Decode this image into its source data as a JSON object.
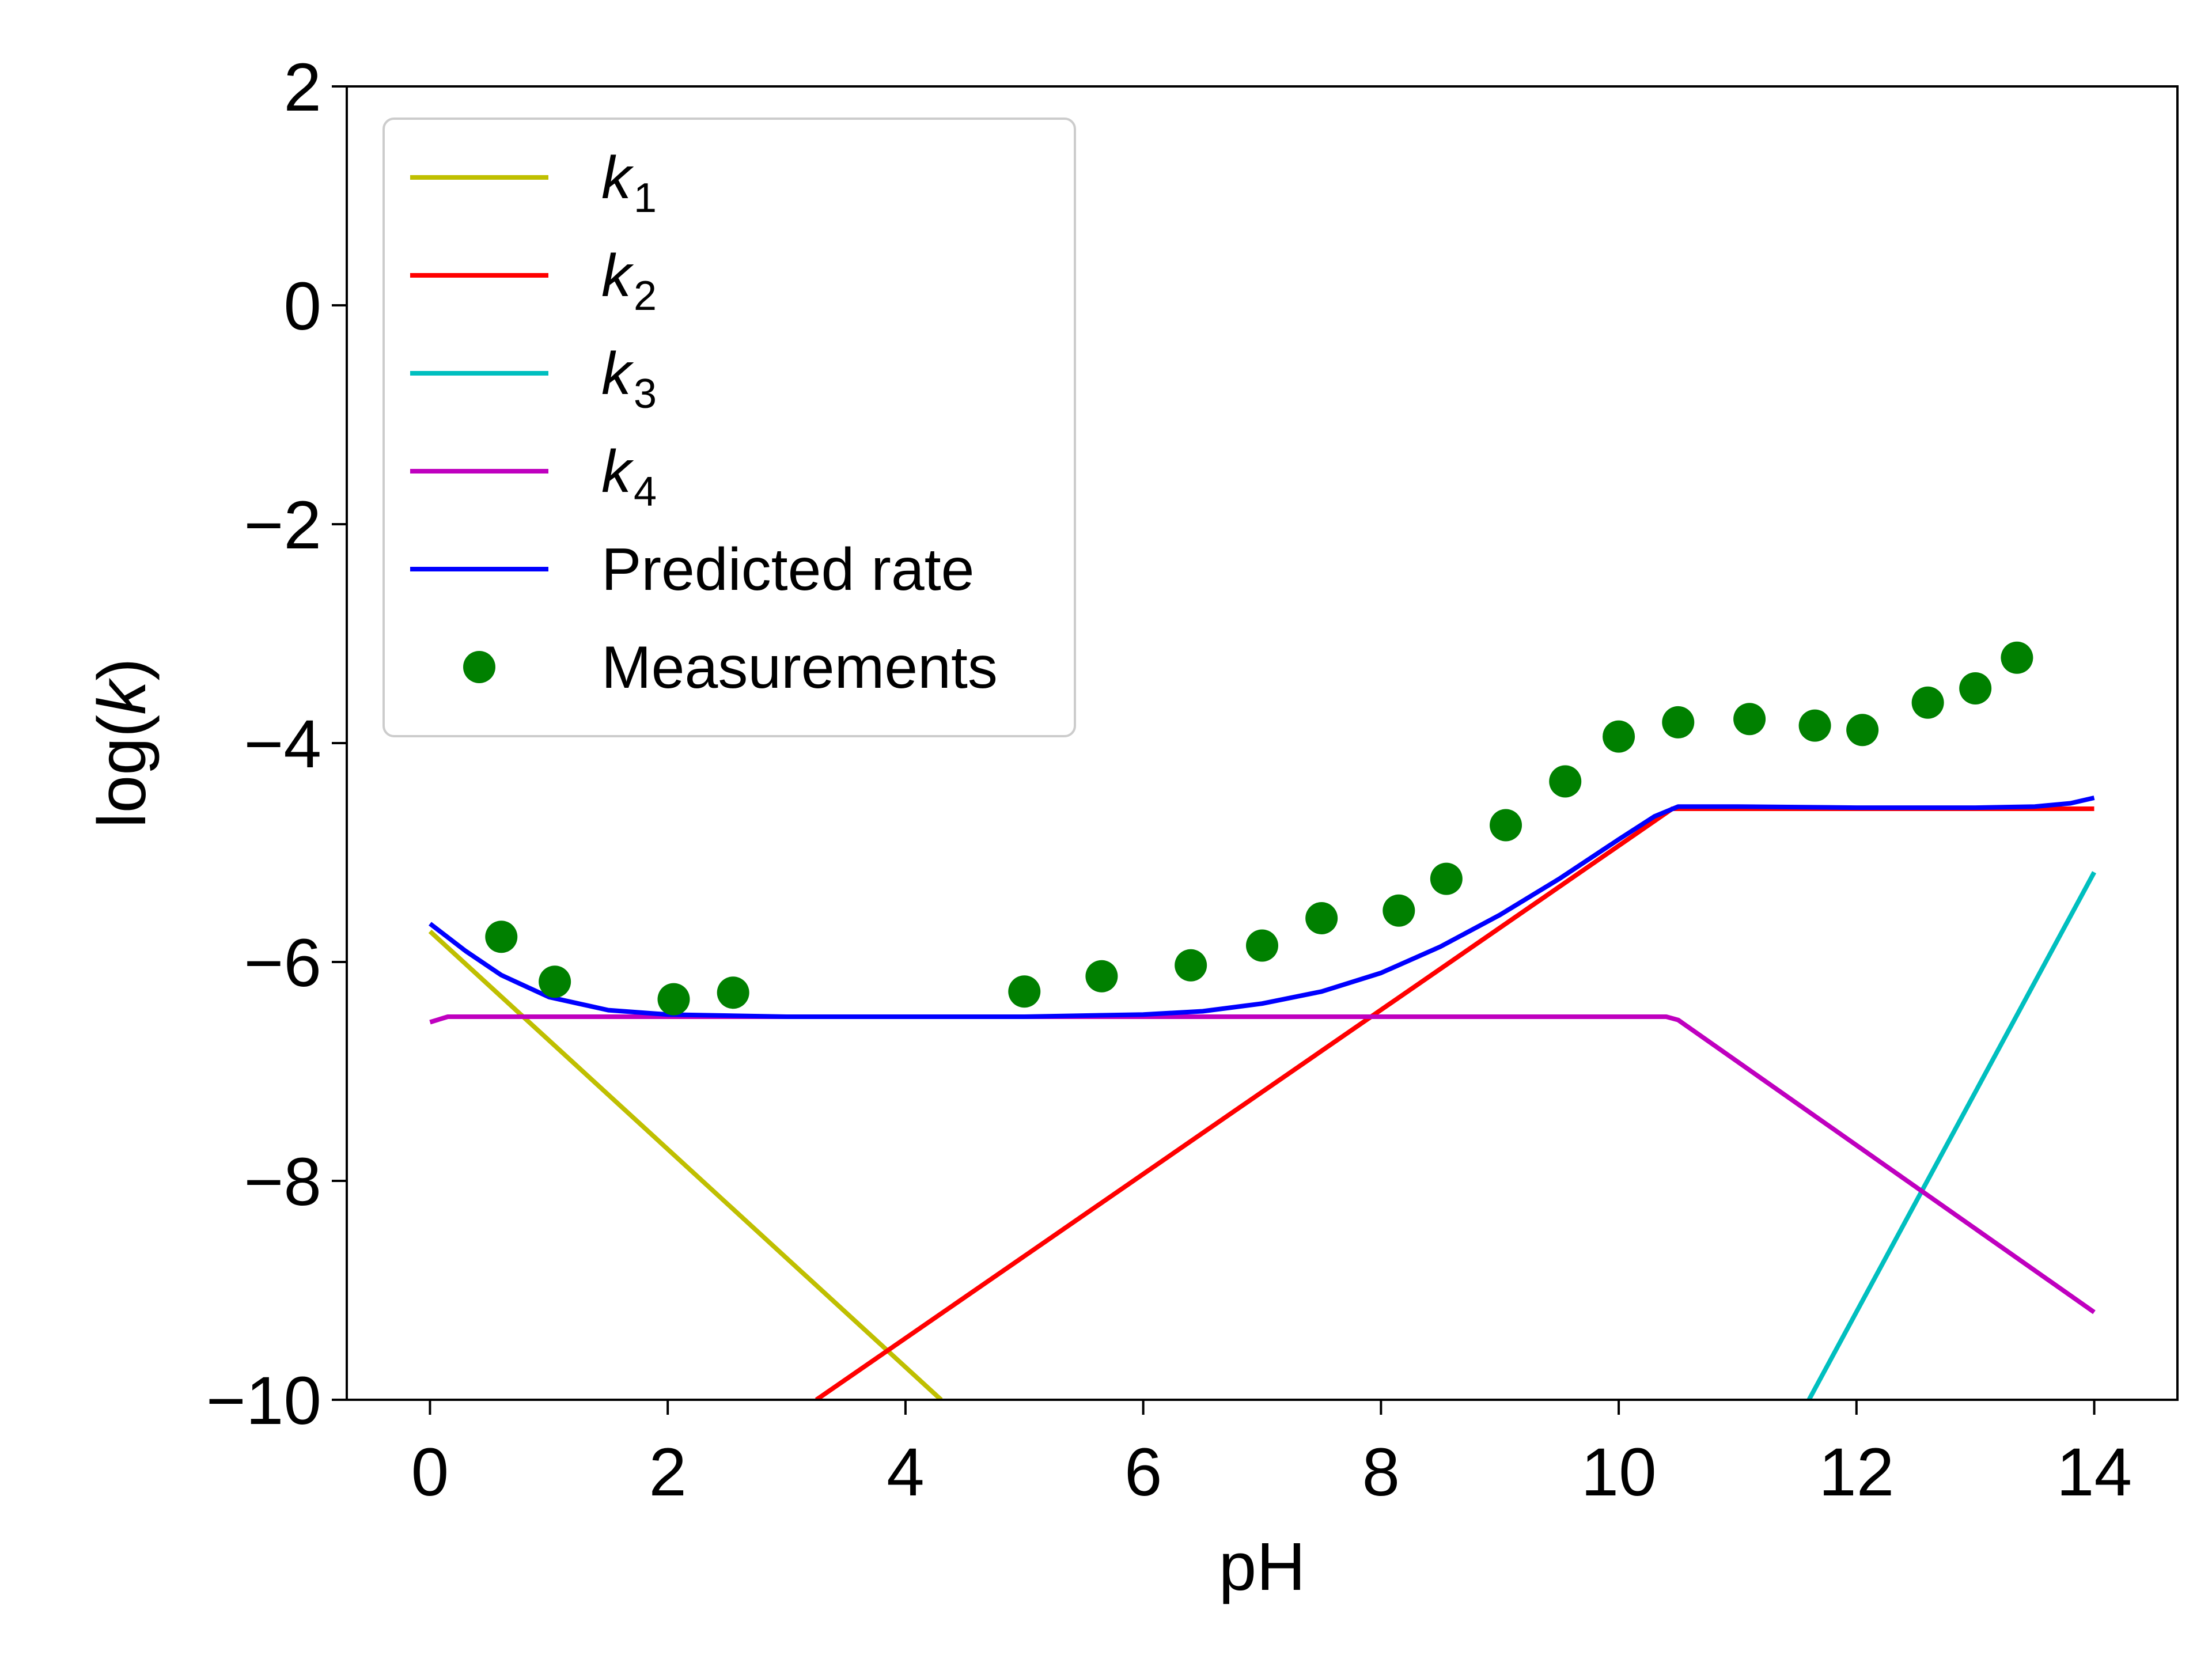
{
  "chart_data": {
    "type": "line",
    "xlabel": "pH",
    "ylabel_prefix": "log(",
    "ylabel_var": "k",
    "ylabel_suffix": ")",
    "xlim": [
      -0.7,
      14.7
    ],
    "ylim": [
      -10,
      2
    ],
    "xticks": [
      0,
      2,
      4,
      6,
      8,
      10,
      12,
      14
    ],
    "xtick_labels": [
      "0",
      "2",
      "4",
      "6",
      "8",
      "10",
      "12",
      "14"
    ],
    "yticks": [
      -10,
      -8,
      -6,
      -4,
      -2,
      0,
      2
    ],
    "ytick_labels": [
      "−10",
      "−8",
      "−6",
      "−4",
      "−2",
      "0",
      "2"
    ],
    "grid": false,
    "legend_position": "upper-left",
    "series": [
      {
        "name": "k",
        "subscript": "1",
        "kind": "line",
        "color": "#bfbf00",
        "x": [
          0,
          4.3
        ],
        "y": [
          -5.72,
          -10.0
        ]
      },
      {
        "name": "k",
        "subscript": "2",
        "kind": "line",
        "color": "#ff0000",
        "x": [
          3.25,
          10.45,
          14.0
        ],
        "y": [
          -10.0,
          -4.6,
          -4.6
        ]
      },
      {
        "name": "k",
        "subscript": "3",
        "kind": "line",
        "color": "#00bfbf",
        "x": [
          11.6,
          14.0
        ],
        "y": [
          -10.0,
          -5.18
        ]
      },
      {
        "name": "k",
        "subscript": "4",
        "kind": "line",
        "color": "#bf00bf",
        "x": [
          0,
          0.15,
          10.4,
          10.5,
          14.0
        ],
        "y": [
          -6.55,
          -6.5,
          -6.5,
          -6.53,
          -9.2
        ]
      },
      {
        "name": "Predicted rate",
        "subscript": "",
        "kind": "line",
        "color": "#0000ff",
        "x": [
          0,
          0.3,
          0.6,
          1.0,
          1.5,
          2.0,
          3.0,
          4.0,
          5.0,
          6.0,
          6.5,
          7.0,
          7.5,
          8.0,
          8.5,
          9.0,
          9.5,
          10.0,
          10.3,
          10.5,
          11.0,
          12.0,
          13.0,
          13.5,
          13.8,
          14.0
        ],
        "y": [
          -5.65,
          -5.9,
          -6.12,
          -6.32,
          -6.44,
          -6.48,
          -6.5,
          -6.5,
          -6.5,
          -6.48,
          -6.45,
          -6.38,
          -6.27,
          -6.1,
          -5.86,
          -5.57,
          -5.24,
          -4.88,
          -4.67,
          -4.58,
          -4.58,
          -4.59,
          -4.59,
          -4.58,
          -4.55,
          -4.5
        ]
      },
      {
        "name": "Measurements",
        "subscript": "",
        "kind": "scatter",
        "color": "#008000",
        "x": [
          0.6,
          1.05,
          2.05,
          2.55,
          5.0,
          5.65,
          6.4,
          7.0,
          7.5,
          8.15,
          8.55,
          9.05,
          9.55,
          10.0,
          10.5,
          11.1,
          11.65,
          12.05,
          12.6,
          13.0,
          13.35
        ],
        "y": [
          -5.77,
          -6.18,
          -6.34,
          -6.28,
          -6.27,
          -6.13,
          -6.03,
          -5.85,
          -5.6,
          -5.53,
          -5.24,
          -4.75,
          -4.35,
          -3.94,
          -3.81,
          -3.78,
          -3.84,
          -3.88,
          -3.63,
          -3.5,
          -3.22
        ]
      }
    ]
  }
}
